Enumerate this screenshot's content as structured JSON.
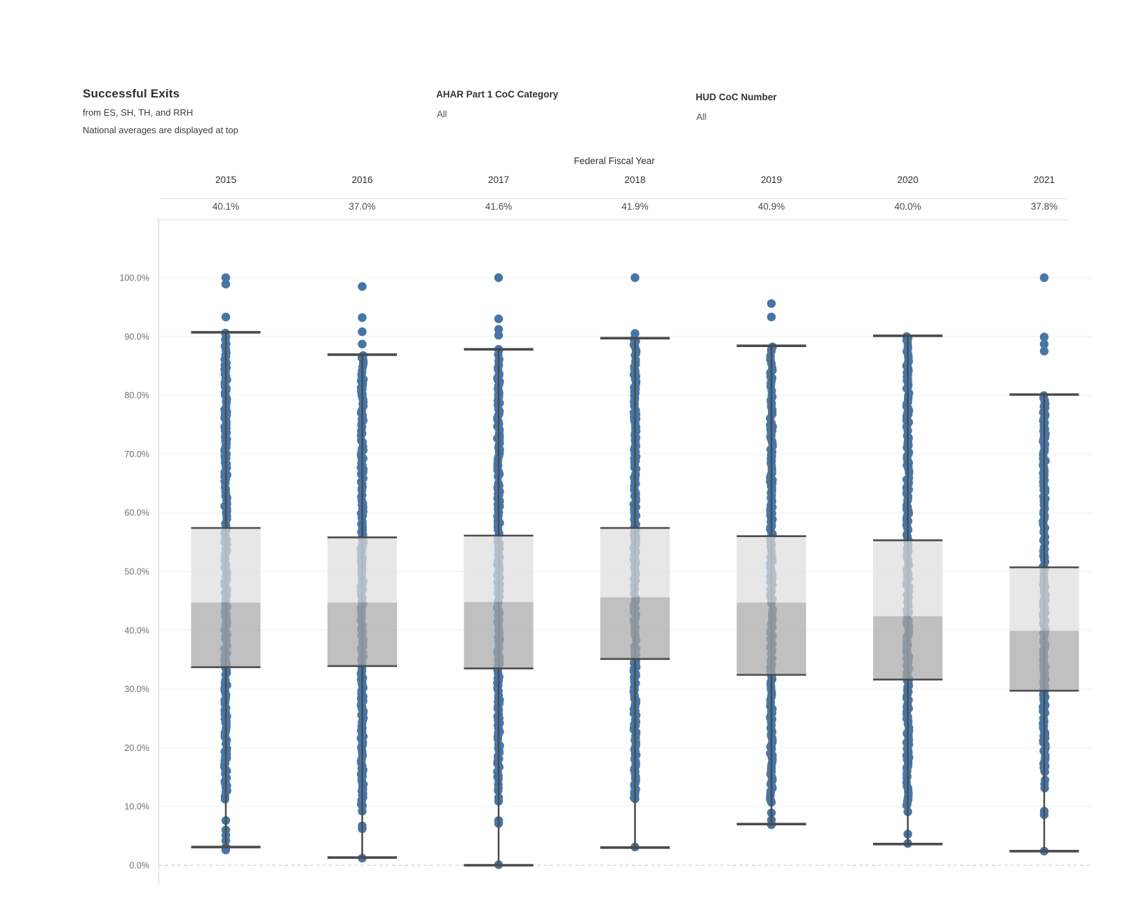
{
  "header": {
    "title": "Successful Exits",
    "subtitle1": "from ES, SH, TH, and RRH",
    "subtitle2": "National averages are displayed at top",
    "filters": [
      {
        "label": "AHAR Part 1 CoC Category",
        "value": "All"
      },
      {
        "label": "HUD CoC Number",
        "value": "All"
      }
    ]
  },
  "chart_data": {
    "type": "boxplot",
    "title": "Successful Exits",
    "x_field_label": "Federal Fiscal Year",
    "ylabel": "",
    "ylim": [
      0,
      100
    ],
    "grid": true,
    "legend": "none",
    "y_ticks": [
      {
        "v": 0,
        "label": "0.0%"
      },
      {
        "v": 10,
        "label": "10.0%"
      },
      {
        "v": 20,
        "label": "20.0%"
      },
      {
        "v": 30,
        "label": "30.0%"
      },
      {
        "v": 40,
        "label": "40.0%"
      },
      {
        "v": 50,
        "label": "50.0%"
      },
      {
        "v": 60,
        "label": "60.0%"
      },
      {
        "v": 70,
        "label": "70.0%"
      },
      {
        "v": 80,
        "label": "80.0%"
      },
      {
        "v": 90,
        "label": "90.0%"
      },
      {
        "v": 100,
        "label": "100.0%"
      }
    ],
    "colors": {
      "dot": "#4676a6",
      "box_light": "#dedede",
      "box_dark": "#a8a8a8",
      "line": "#4b4b4b",
      "grid": "#efefef",
      "zero_line": "#c9c9c9",
      "axis_border": "#d9d9d9",
      "header_rule": "#dedede"
    },
    "jitter_seed": 1337,
    "years": [
      {
        "label": "2015",
        "avg_label": "40.1%",
        "avg": 40.1,
        "whisker_low": 3.1,
        "q1": 33.7,
        "median": 44.7,
        "q3": 57.4,
        "whisker_high": 90.7,
        "dot_bands": [
          {
            "from": 11.0,
            "to": 88.3,
            "step": 3
          },
          {
            "from": 88.4,
            "to": 90.6,
            "step": 5
          }
        ],
        "outliers_top": [
          100,
          98.9,
          93.3
        ],
        "outliers_bottom": [
          7.6,
          6.0,
          5.1,
          4.2,
          3.1,
          2.6
        ]
      },
      {
        "label": "2016",
        "avg_label": "37.0%",
        "avg": 37.0,
        "whisker_low": 1.3,
        "q1": 33.9,
        "median": 44.7,
        "q3": 55.8,
        "whisker_high": 86.9,
        "dot_bands": [
          {
            "from": 10.0,
            "to": 86.7,
            "step": 3
          }
        ],
        "outliers_top": [
          98.5,
          93.2,
          90.8,
          88.7
        ],
        "outliers_bottom": [
          9.2,
          6.7,
          6.2,
          1.2
        ]
      },
      {
        "label": "2017",
        "avg_label": "41.6%",
        "avg": 41.6,
        "whisker_low": 0.0,
        "q1": 33.5,
        "median": 44.8,
        "q3": 56.1,
        "whisker_high": 87.8,
        "dot_bands": [
          {
            "from": 12.5,
            "to": 87.6,
            "step": 3
          }
        ],
        "outliers_top": [
          100,
          93.0,
          91.2,
          90.2,
          87.8
        ],
        "outliers_bottom": [
          11.5,
          10.9,
          7.6,
          7.1,
          0.1
        ]
      },
      {
        "label": "2018",
        "avg_label": "41.9%",
        "avg": 41.9,
        "whisker_low": 3.0,
        "q1": 35.1,
        "median": 45.6,
        "q3": 57.4,
        "whisker_high": 89.7,
        "dot_bands": [
          {
            "from": 11.0,
            "to": 89.6,
            "step": 3
          }
        ],
        "outliers_top": [
          100,
          90.5
        ],
        "outliers_bottom": [
          12.4,
          11.3,
          3.1
        ]
      },
      {
        "label": "2019",
        "avg_label": "40.9%",
        "avg": 40.9,
        "whisker_low": 7.0,
        "q1": 32.4,
        "median": 44.7,
        "q3": 56.0,
        "whisker_high": 88.4,
        "dot_bands": [
          {
            "from": 10.8,
            "to": 88.2,
            "step": 3
          }
        ],
        "outliers_top": [
          95.6,
          93.3
        ],
        "outliers_bottom": [
          10.7,
          8.9,
          7.7,
          6.9
        ]
      },
      {
        "label": "2020",
        "avg_label": "40.0%",
        "avg": 40.0,
        "whisker_low": 3.6,
        "q1": 31.6,
        "median": 42.4,
        "q3": 55.3,
        "whisker_high": 90.1,
        "dot_bands": [
          {
            "from": 10.0,
            "to": 90.0,
            "step": 3
          }
        ],
        "outliers_top": [],
        "outliers_bottom": [
          11.2,
          9.1,
          5.3,
          3.7
        ]
      },
      {
        "label": "2021",
        "avg_label": "37.8%",
        "avg": 37.8,
        "whisker_low": 2.4,
        "q1": 29.7,
        "median": 39.9,
        "q3": 50.7,
        "whisker_high": 80.1,
        "dot_bands": [
          {
            "from": 16.0,
            "to": 79.9,
            "step": 3
          },
          {
            "from": 12.5,
            "to": 15.9,
            "step": 6
          }
        ],
        "outliers_top": [
          100,
          89.9,
          88.7,
          87.5
        ],
        "outliers_bottom": [
          9.2,
          8.6,
          2.4
        ]
      }
    ]
  }
}
